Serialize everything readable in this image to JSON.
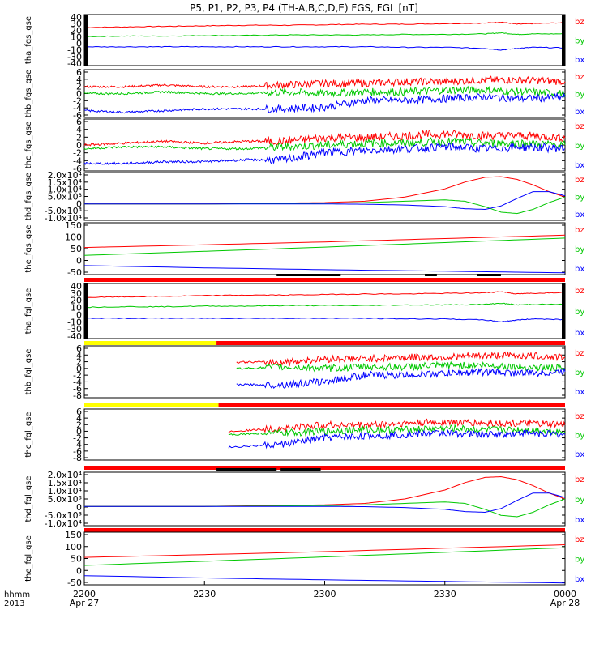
{
  "title": "P5, P1, P2, P3, P4 (TH-A,B,C,D,E) FGS, FGL [nT]",
  "colors": {
    "bz": "#ff0000",
    "by": "#00c800",
    "bx": "#0000ff",
    "yellow": "#ffff00",
    "bar": "#ff0000",
    "black": "#000000"
  },
  "legend_labels": [
    "bz",
    "by",
    "bx"
  ],
  "x_axis": {
    "row_labels": [
      "hhmm",
      "2013"
    ],
    "ticks": [
      {
        "value": 0,
        "label": "2200",
        "sublabel": "Apr 27"
      },
      {
        "value": 30,
        "label": "2230",
        "sublabel": ""
      },
      {
        "value": 60,
        "label": "2300",
        "sublabel": ""
      },
      {
        "value": 90,
        "label": "2330",
        "sublabel": ""
      },
      {
        "value": 120,
        "label": "0000",
        "sublabel": "Apr 28"
      }
    ],
    "range": [
      0,
      120
    ]
  },
  "chart_data": [
    {
      "type": "line",
      "ylabel": "tha_fgs_gse",
      "ylim": [
        -50,
        45
      ],
      "yticks": [
        "40",
        "30",
        "20",
        "10",
        "0",
        "-10",
        "-30",
        "-40"
      ],
      "series": [
        {
          "name": "bz",
          "x": [
            0,
            10,
            20,
            30,
            40,
            50,
            60,
            70,
            80,
            90,
            100,
            104,
            108,
            112,
            120
          ],
          "y": [
            21,
            22,
            23,
            24,
            25,
            25,
            26,
            27,
            27,
            28,
            29,
            31,
            27,
            28,
            30
          ]
        },
        {
          "name": "by",
          "x": [
            0,
            10,
            20,
            30,
            40,
            50,
            60,
            70,
            80,
            90,
            100,
            104,
            108,
            112,
            120
          ],
          "y": [
            4,
            5,
            5,
            6,
            6,
            7,
            7,
            7,
            8,
            8,
            9,
            11,
            8,
            9,
            9
          ]
        },
        {
          "name": "bx",
          "x": [
            0,
            10,
            20,
            30,
            40,
            50,
            60,
            70,
            80,
            90,
            100,
            104,
            108,
            112,
            120
          ],
          "y": [
            -15,
            -15,
            -15,
            -15,
            -15,
            -15,
            -15,
            -15,
            -16,
            -16,
            -18,
            -21,
            -18,
            -16,
            -17
          ]
        }
      ]
    },
    {
      "type": "line",
      "ylabel": "thb_fgs_gse",
      "ylim": [
        -7,
        7
      ],
      "yticks": [
        "6",
        "4",
        "2",
        "0",
        "-2",
        "-4",
        "-6"
      ],
      "series": [
        {
          "name": "bz",
          "x": [
            0,
            10,
            20,
            30,
            40,
            50,
            60,
            70,
            80,
            90,
            100,
            110,
            120
          ],
          "y": [
            2,
            2,
            2.5,
            2,
            2,
            2.5,
            3,
            3,
            3.5,
            3.5,
            4,
            4,
            3.5
          ]
        },
        {
          "name": "by",
          "x": [
            0,
            10,
            20,
            30,
            40,
            50,
            60,
            70,
            80,
            90,
            100,
            110,
            120
          ],
          "y": [
            0,
            0,
            0.5,
            0,
            0,
            0.5,
            0,
            0.5,
            0.5,
            1,
            1,
            0.5,
            0
          ]
        },
        {
          "name": "bx",
          "x": [
            0,
            10,
            20,
            30,
            40,
            50,
            60,
            70,
            80,
            90,
            100,
            110,
            120
          ],
          "y": [
            -5,
            -5.5,
            -5,
            -4.5,
            -4.5,
            -4.5,
            -4,
            -2,
            -2,
            -1.5,
            -1,
            -1.5,
            -1
          ]
        }
      ]
    },
    {
      "type": "line",
      "ylabel": "thc_fgs_gse",
      "ylim": [
        -7,
        7
      ],
      "yticks": [
        "6",
        "4",
        "2",
        "0",
        "-2",
        "-4",
        "-6"
      ],
      "series": [
        {
          "name": "bz",
          "x": [
            0,
            10,
            20,
            30,
            40,
            50,
            60,
            70,
            80,
            90,
            100,
            110,
            120
          ],
          "y": [
            0,
            0.5,
            1,
            0.5,
            1,
            1,
            2,
            2,
            2.5,
            3,
            2.5,
            2.5,
            2
          ]
        },
        {
          "name": "by",
          "x": [
            0,
            10,
            20,
            30,
            40,
            50,
            60,
            70,
            80,
            90,
            100,
            110,
            120
          ],
          "y": [
            -1,
            -0.5,
            -0.5,
            -1,
            -1,
            -0.5,
            0,
            0.5,
            0.5,
            1,
            0.5,
            0.5,
            0
          ]
        },
        {
          "name": "bx",
          "x": [
            0,
            10,
            20,
            30,
            40,
            50,
            60,
            70,
            80,
            90,
            100,
            110,
            120
          ],
          "y": [
            -5,
            -5,
            -4.5,
            -4.5,
            -4,
            -4,
            -2,
            -1.5,
            -1,
            -0.5,
            -1,
            -0.5,
            -1
          ]
        }
      ]
    },
    {
      "type": "line",
      "ylabel": "thd_fgs_gse",
      "ylim": [
        -12000,
        23000
      ],
      "yticks": [
        "2.0x10⁴",
        "1.5x10⁴",
        "1.0x10⁴",
        "5.0x10³",
        "0",
        "-5.0x10³",
        "-1.0x10⁴"
      ],
      "series": [
        {
          "name": "bz",
          "x": [
            0,
            30,
            60,
            70,
            80,
            90,
            95,
            100,
            104,
            108,
            112,
            116,
            120
          ],
          "y": [
            0,
            0,
            1000,
            2000,
            5000,
            11000,
            16000,
            19500,
            20000,
            18000,
            14000,
            9000,
            5000
          ]
        },
        {
          "name": "by",
          "x": [
            0,
            30,
            60,
            70,
            80,
            90,
            95,
            100,
            104,
            108,
            112,
            116,
            120
          ],
          "y": [
            0,
            0,
            500,
            1000,
            2000,
            3000,
            2000,
            -2000,
            -6000,
            -7000,
            -4000,
            1000,
            5000
          ]
        },
        {
          "name": "bx",
          "x": [
            0,
            30,
            60,
            70,
            80,
            90,
            95,
            100,
            104,
            108,
            112,
            116,
            120
          ],
          "y": [
            0,
            0,
            0,
            -200,
            -800,
            -2000,
            -3500,
            -4000,
            -1500,
            4000,
            9000,
            9000,
            6000
          ]
        }
      ]
    },
    {
      "type": "line",
      "ylabel": "the_fgs_gse",
      "ylim": [
        -70,
        160
      ],
      "yticks": [
        "150",
        "100",
        "50",
        "0",
        "-50"
      ],
      "series": [
        {
          "name": "bz",
          "x": [
            0,
            30,
            60,
            90,
            120
          ],
          "y": [
            50,
            62,
            75,
            90,
            105
          ]
        },
        {
          "name": "by",
          "x": [
            0,
            30,
            60,
            90,
            120
          ],
          "y": [
            15,
            33,
            52,
            72,
            92
          ]
        },
        {
          "name": "bx",
          "x": [
            0,
            30,
            60,
            90,
            120
          ],
          "y": [
            -30,
            -40,
            -48,
            -55,
            -62
          ]
        }
      ]
    },
    {
      "type": "line",
      "ylabel": "tha_fgl_gse",
      "ylim": [
        -50,
        45
      ],
      "yticks": [
        "40",
        "30",
        "20",
        "10",
        "0",
        "-10",
        "-30",
        "-40"
      ],
      "series": [
        {
          "name": "bz",
          "x": [
            0,
            10,
            20,
            30,
            40,
            50,
            60,
            70,
            80,
            90,
            100,
            104,
            108,
            112,
            120
          ],
          "y": [
            21,
            22,
            23,
            24,
            25,
            25,
            26,
            27,
            27,
            28,
            29,
            31,
            27,
            28,
            30
          ]
        },
        {
          "name": "by",
          "x": [
            0,
            10,
            20,
            30,
            40,
            50,
            60,
            70,
            80,
            90,
            100,
            104,
            108,
            112,
            120
          ],
          "y": [
            4,
            5,
            5,
            6,
            6,
            7,
            7,
            7,
            8,
            8,
            9,
            11,
            8,
            9,
            9
          ]
        },
        {
          "name": "bx",
          "x": [
            0,
            10,
            20,
            30,
            40,
            50,
            60,
            70,
            80,
            90,
            100,
            104,
            108,
            112,
            120
          ],
          "y": [
            -15,
            -15,
            -15,
            -15,
            -15,
            -15,
            -15,
            -15,
            -16,
            -16,
            -18,
            -21,
            -18,
            -16,
            -17
          ]
        }
      ]
    },
    {
      "type": "line",
      "ylabel": "thb_fgl_gse",
      "ylim": [
        -9,
        7
      ],
      "yticks": [
        "6",
        "4",
        "2",
        "0",
        "-2",
        "-4",
        "-6",
        "-8"
      ],
      "series": [
        {
          "name": "bz",
          "x": [
            38,
            50,
            60,
            70,
            80,
            90,
            100,
            110,
            120
          ],
          "y": [
            2,
            2,
            3,
            3,
            3.5,
            3.5,
            4,
            4,
            3.5
          ]
        },
        {
          "name": "by",
          "x": [
            38,
            50,
            60,
            70,
            80,
            90,
            100,
            110,
            120
          ],
          "y": [
            0,
            0.5,
            0,
            0.5,
            0.5,
            1,
            1,
            0.5,
            0
          ]
        },
        {
          "name": "bx",
          "x": [
            38,
            50,
            60,
            70,
            80,
            90,
            100,
            110,
            120
          ],
          "y": [
            -5,
            -5,
            -4,
            -2,
            -2,
            -1.5,
            -1,
            -1.5,
            -1
          ]
        }
      ]
    },
    {
      "type": "line",
      "ylabel": "thc_fgl_gse",
      "ylim": [
        -9,
        7
      ],
      "yticks": [
        "6",
        "4",
        "2",
        "0",
        "-2",
        "-4",
        "-6",
        "-8"
      ],
      "series": [
        {
          "name": "bz",
          "x": [
            36,
            50,
            60,
            70,
            80,
            90,
            100,
            110,
            120
          ],
          "y": [
            0,
            1,
            2,
            2,
            2.5,
            3,
            2.5,
            2.5,
            2
          ]
        },
        {
          "name": "by",
          "x": [
            36,
            50,
            60,
            70,
            80,
            90,
            100,
            110,
            120
          ],
          "y": [
            -1,
            -0.5,
            0,
            0.5,
            0.5,
            1,
            0.5,
            0.5,
            0
          ]
        },
        {
          "name": "bx",
          "x": [
            36,
            50,
            60,
            70,
            80,
            90,
            100,
            110,
            120
          ],
          "y": [
            -5,
            -4,
            -2,
            -1.5,
            -1,
            -0.5,
            -1,
            -0.5,
            -1
          ]
        }
      ]
    },
    {
      "type": "line",
      "ylabel": "thd_fgl_gse",
      "ylim": [
        -13000,
        23000
      ],
      "yticks": [
        "2.0x10⁴",
        "1.5x10⁴",
        "1.0x10⁴",
        "5.0x10³",
        "0",
        "-5.0x10³",
        "-1.0x10⁴"
      ],
      "series": [
        {
          "name": "bz",
          "x": [
            0,
            30,
            60,
            70,
            80,
            90,
            95,
            100,
            104,
            108,
            112,
            116,
            120
          ],
          "y": [
            0,
            0,
            1000,
            2000,
            5000,
            11000,
            16000,
            19500,
            20000,
            18000,
            14000,
            9000,
            5000
          ]
        },
        {
          "name": "by",
          "x": [
            0,
            30,
            60,
            70,
            80,
            90,
            95,
            100,
            104,
            108,
            112,
            116,
            120
          ],
          "y": [
            0,
            0,
            500,
            1000,
            2000,
            3000,
            2000,
            -2000,
            -6000,
            -7000,
            -4000,
            1000,
            5000
          ]
        },
        {
          "name": "bx",
          "x": [
            0,
            30,
            60,
            70,
            80,
            90,
            95,
            100,
            104,
            108,
            112,
            116,
            120
          ],
          "y": [
            0,
            0,
            0,
            -200,
            -800,
            -2000,
            -3500,
            -4000,
            -1500,
            4000,
            9000,
            9000,
            6000
          ]
        }
      ]
    },
    {
      "type": "line",
      "ylabel": "the_fgl_gse",
      "ylim": [
        -70,
        160
      ],
      "yticks": [
        "150",
        "100",
        "50",
        "0",
        "-50"
      ],
      "series": [
        {
          "name": "bz",
          "x": [
            0,
            30,
            60,
            90,
            120
          ],
          "y": [
            50,
            62,
            75,
            90,
            105
          ]
        },
        {
          "name": "by",
          "x": [
            0,
            30,
            60,
            90,
            120
          ],
          "y": [
            15,
            33,
            52,
            72,
            92
          ]
        },
        {
          "name": "bx",
          "x": [
            0,
            30,
            60,
            90,
            120
          ],
          "y": [
            -30,
            -40,
            -48,
            -55,
            -62
          ]
        }
      ]
    }
  ]
}
